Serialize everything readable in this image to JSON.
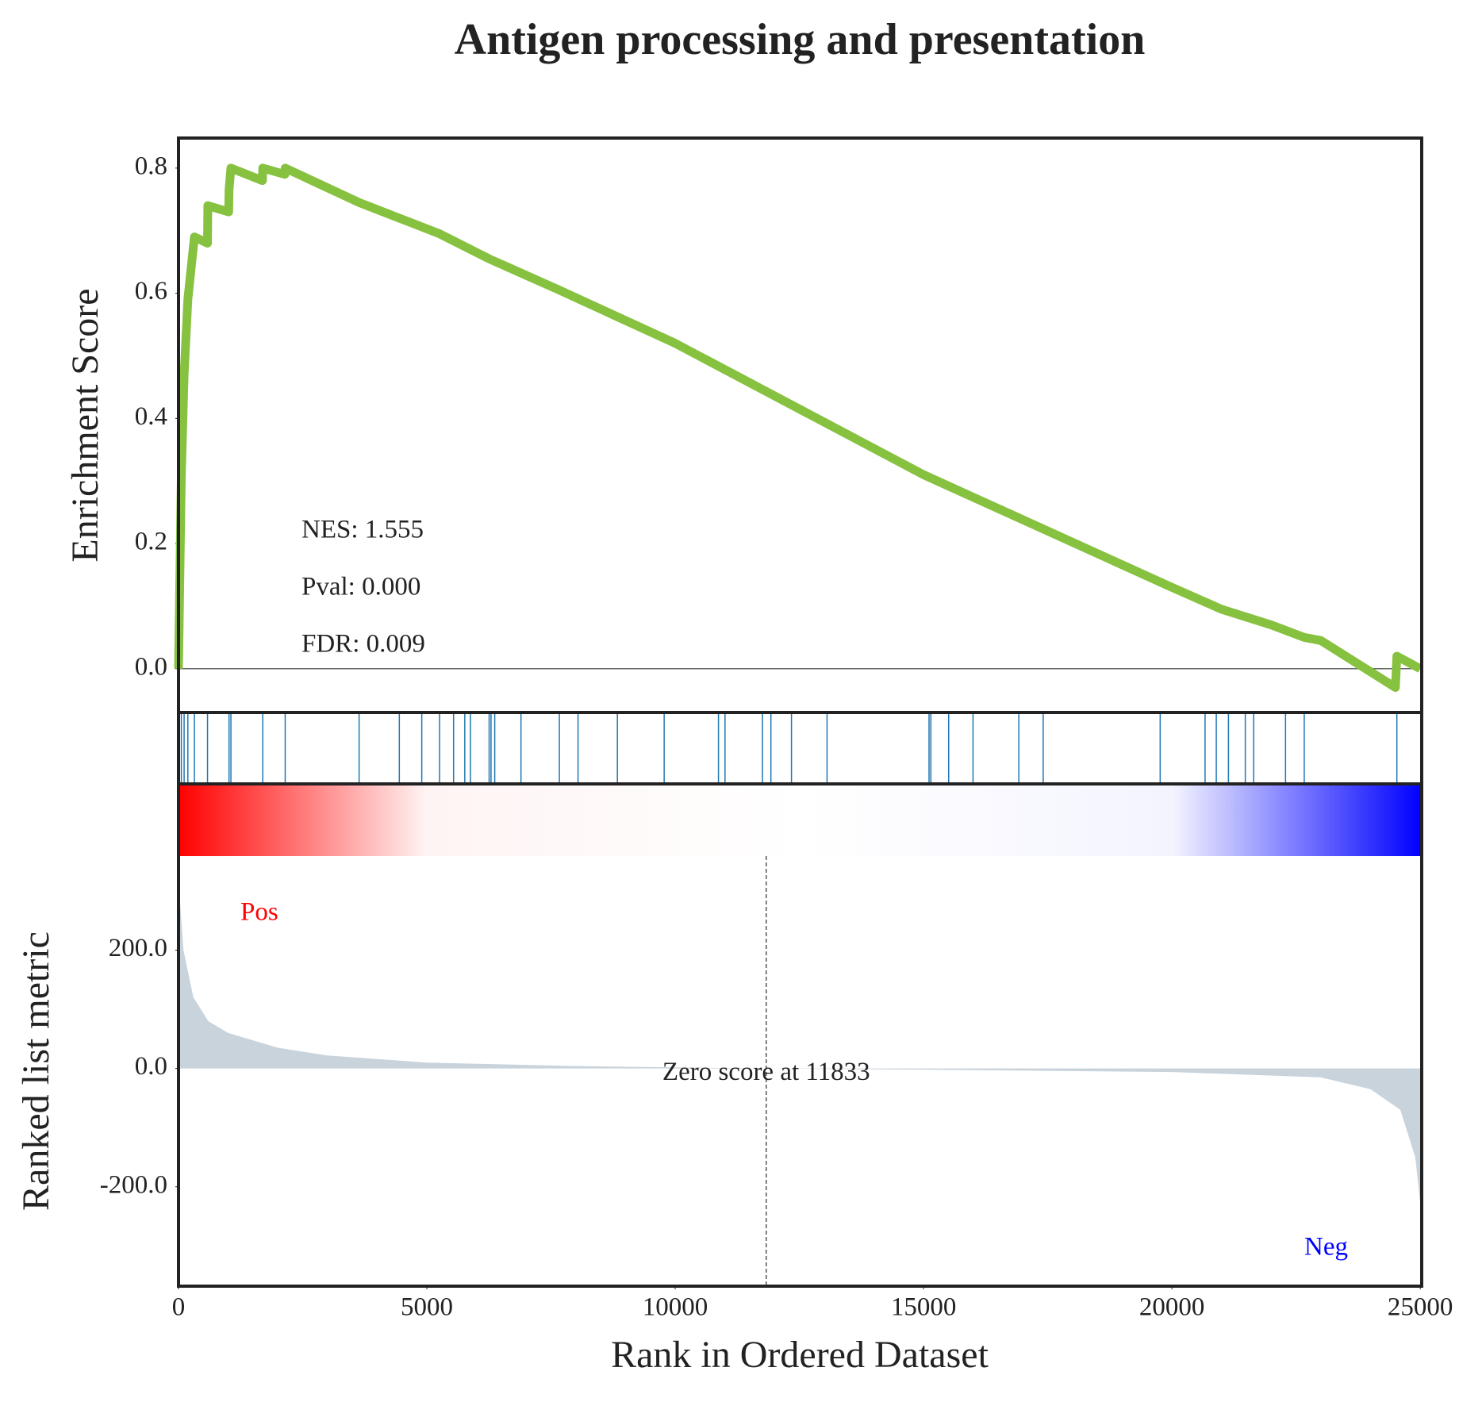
{
  "chart_data": [
    {
      "type": "line",
      "title": "Antigen processing and presentation",
      "y_label": "Enrichment Score",
      "x": [
        0,
        57,
        113,
        188,
        320,
        584,
        590,
        1010,
        1017,
        1055,
        1690,
        1696,
        2140,
        2148,
        3636,
        4446,
        5256,
        6254,
        7668,
        10000,
        15000,
        20000,
        21000,
        22000,
        22665,
        23000,
        24500,
        24530,
        25000
      ],
      "values": [
        0.0,
        0.31,
        0.47,
        0.59,
        0.69,
        0.68,
        0.74,
        0.73,
        0.765,
        0.8,
        0.78,
        0.8,
        0.79,
        0.8,
        0.745,
        0.72,
        0.695,
        0.655,
        0.605,
        0.52,
        0.31,
        0.13,
        0.095,
        0.07,
        0.05,
        0.045,
        -0.03,
        0.02,
        0.0
      ],
      "color": "#86c13f",
      "annotations": [
        "NES: 1.555",
        "Pval: 0.000",
        "FDR: 0.009"
      ],
      "xlim": [
        0,
        25030
      ],
      "ylim": [
        -0.07,
        0.848
      ],
      "yticks": [
        {
          "value": 0,
          "label": "0.0"
        },
        0.2,
        0.4,
        0.6,
        0.8
      ]
    },
    {
      "type": "rug",
      "x": [
        57,
        113,
        188,
        320,
        584,
        1017,
        1055,
        1696,
        2148,
        3636,
        4446,
        4898,
        5256,
        5538,
        5764,
        5877,
        6254,
        6292,
        6367,
        6895,
        7668,
        8044,
        8836,
        9778,
        10871,
        11003,
        11757,
        11927,
        12341,
        13057,
        15111,
        15148,
        15506,
        15996,
        16919,
        17409,
        19764,
        20668,
        20894,
        21139,
        21478,
        21648,
        22288,
        22665,
        24530
      ],
      "color": "#1f77b4",
      "xlim": [
        0,
        25030
      ]
    },
    {
      "type": "area",
      "y_label": "Ranked list metric",
      "x_label": "Rank in Ordered Dataset",
      "x": [
        0,
        100,
        300,
        600,
        1000,
        2000,
        3000,
        5000,
        8000,
        11833,
        15000,
        20000,
        23000,
        24000,
        24600,
        24900,
        25030
      ],
      "values": [
        320,
        200,
        120,
        80,
        60,
        35,
        22,
        10,
        4,
        0,
        -2,
        -6,
        -15,
        -35,
        -70,
        -150,
        -250
      ],
      "color": "#c9d3dc",
      "xlim": [
        0,
        25030
      ],
      "ylim": [
        -368,
        359
      ],
      "xticks": [
        0,
        5000,
        10000,
        15000,
        20000,
        25000
      ],
      "yticks": [
        {
          "value": -200,
          "label": "-200.0"
        },
        {
          "value": 0,
          "label": "0.0"
        },
        {
          "value": 200,
          "label": "200.0"
        }
      ],
      "zero_rank": 11833,
      "annotation": "Zero score at 11833",
      "pos_label": "Pos",
      "neg_label": "Neg"
    }
  ]
}
